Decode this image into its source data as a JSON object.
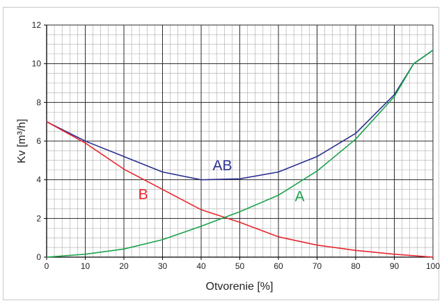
{
  "chart_data": {
    "type": "line",
    "title": "",
    "xlabel": "Otvorenie [%]",
    "ylabel": "Kv [m³/h]",
    "xlim": [
      0,
      100
    ],
    "ylim": [
      0,
      12
    ],
    "x_ticks": [
      "0",
      "10",
      "20",
      "30",
      "40",
      "50",
      "60",
      "70",
      "80",
      "90",
      "100"
    ],
    "y_ticks": [
      "0",
      "2",
      "4",
      "6",
      "8",
      "10",
      "12"
    ],
    "grid": true,
    "series": [
      {
        "name": "AB",
        "color": "#2b2f8f",
        "x": [
          0,
          10,
          20,
          30,
          40,
          50,
          60,
          70,
          80,
          90,
          95,
          100
        ],
        "y": [
          7.0,
          6.0,
          5.2,
          4.4,
          4.0,
          4.05,
          4.4,
          5.2,
          6.4,
          8.4,
          10.0,
          10.7
        ]
      },
      {
        "name": "B",
        "color": "#e8262d",
        "x": [
          0,
          10,
          20,
          30,
          40,
          50,
          60,
          70,
          80,
          90,
          100
        ],
        "y": [
          7.0,
          5.9,
          4.55,
          3.5,
          2.45,
          1.8,
          1.05,
          0.62,
          0.35,
          0.15,
          0.0
        ]
      },
      {
        "name": "A",
        "color": "#1aa24a",
        "x": [
          0,
          10,
          20,
          30,
          40,
          50,
          60,
          70,
          80,
          90,
          95,
          100
        ],
        "y": [
          0.0,
          0.15,
          0.42,
          0.9,
          1.6,
          2.35,
          3.2,
          4.45,
          6.1,
          8.3,
          10.0,
          10.7
        ]
      }
    ],
    "labels": [
      {
        "text": "AB",
        "color": "#2b2f8f",
        "x": 45.5,
        "y": 4.5
      },
      {
        "text": "B",
        "color": "#e8262d",
        "x": 25,
        "y": 3.0
      },
      {
        "text": "A",
        "color": "#1aa24a",
        "x": 65.5,
        "y": 2.9
      }
    ]
  }
}
